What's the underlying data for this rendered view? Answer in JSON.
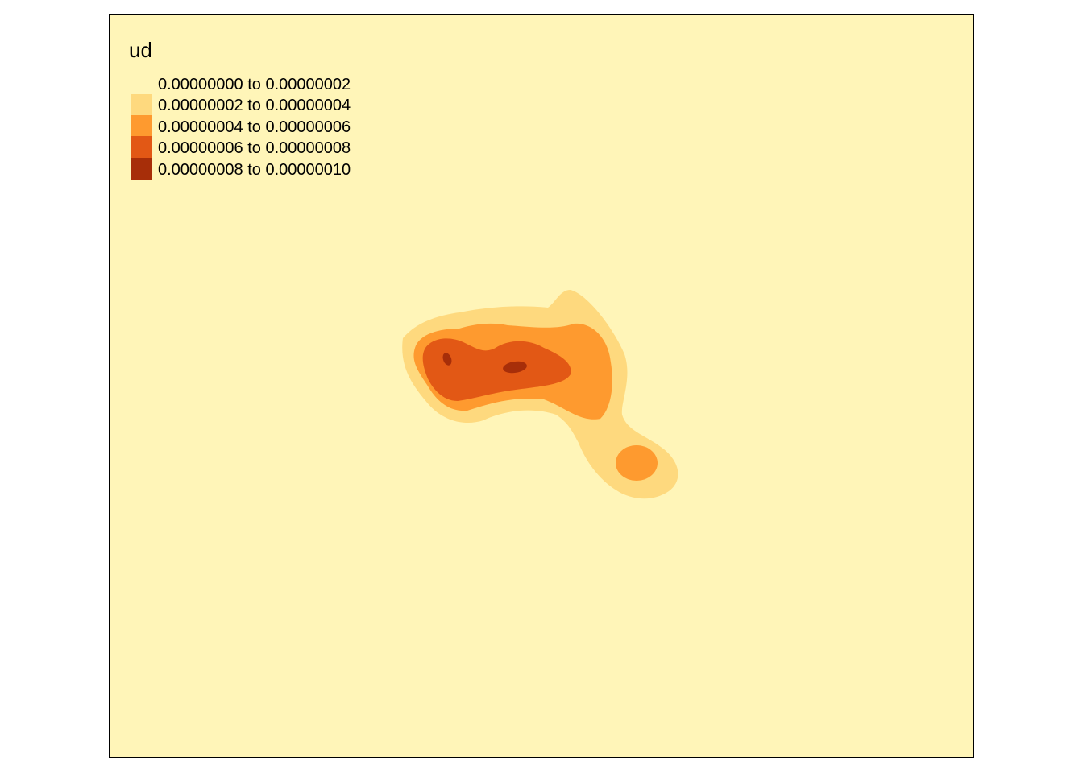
{
  "map": {
    "variable": "ud",
    "background_color": "#FFF5B8",
    "border_color": "#000000"
  },
  "legend": {
    "title": "ud",
    "placement": "top-left",
    "classes": [
      {
        "label": "0.00000000 to 0.00000002",
        "color": "#FFF5B8"
      },
      {
        "label": "0.00000002 to 0.00000004",
        "color": "#FED97E"
      },
      {
        "label": "0.00000004 to 0.00000006",
        "color": "#FE9A2F"
      },
      {
        "label": "0.00000006 to 0.00000008",
        "color": "#E25815"
      },
      {
        "label": "0.00000008 to 0.00000010",
        "color": "#A72E09"
      }
    ]
  }
}
